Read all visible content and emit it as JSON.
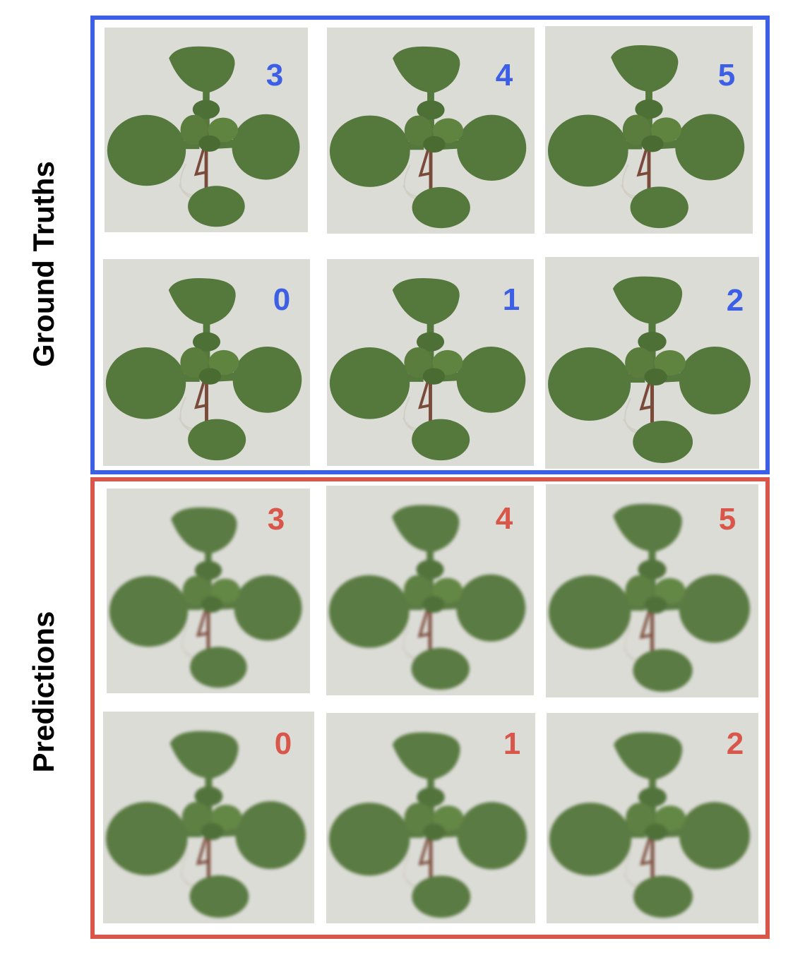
{
  "colors": {
    "ground_truth": "#3c5fe6",
    "prediction": "#d9574a",
    "background": "#dcdcd7",
    "leaf": "#55783d",
    "stem": "#7a4a3a"
  },
  "ground_truths": {
    "label": "Ground Truths",
    "rows": [
      {
        "tiles": [
          {
            "number": "3"
          },
          {
            "number": "4"
          },
          {
            "number": "5"
          }
        ]
      },
      {
        "tiles": [
          {
            "number": "0"
          },
          {
            "number": "1"
          },
          {
            "number": "2"
          }
        ]
      }
    ]
  },
  "predictions": {
    "label": "Predictions",
    "rows": [
      {
        "tiles": [
          {
            "number": "3"
          },
          {
            "number": "4"
          },
          {
            "number": "5"
          }
        ]
      },
      {
        "tiles": [
          {
            "number": "0"
          },
          {
            "number": "1"
          },
          {
            "number": "2"
          }
        ]
      }
    ]
  }
}
